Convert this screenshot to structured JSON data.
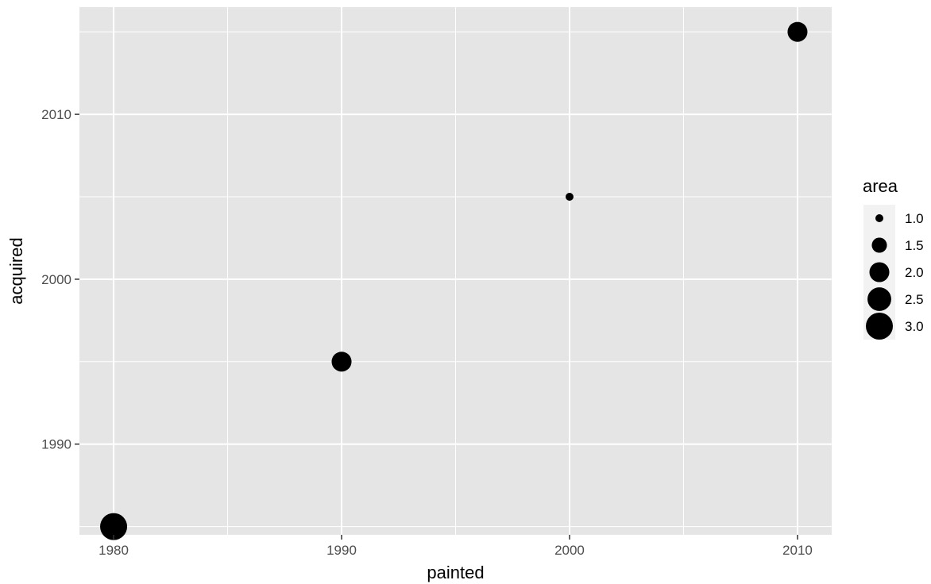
{
  "chart_data": {
    "type": "scatter",
    "title": "",
    "xlabel": "painted",
    "ylabel": "acquired",
    "xlim": [
      1978.5,
      2011.5
    ],
    "ylim": [
      1984.5,
      2016.5
    ],
    "x_ticks": [
      1980,
      1990,
      2000,
      2010
    ],
    "y_ticks": [
      1990,
      2000,
      2010
    ],
    "grid": true,
    "points": [
      {
        "painted": 1980,
        "acquired": 1985,
        "area": 3.0
      },
      {
        "painted": 1990,
        "acquired": 1995,
        "area": 2.0
      },
      {
        "painted": 2000,
        "acquired": 2005,
        "area": 1.0
      },
      {
        "painted": 2010,
        "acquired": 2015,
        "area": 2.0
      }
    ],
    "legend": {
      "title": "area",
      "position": "right",
      "entries": [
        {
          "label": "1.0",
          "value": 1.0
        },
        {
          "label": "1.5",
          "value": 1.5
        },
        {
          "label": "2.0",
          "value": 2.0
        },
        {
          "label": "2.5",
          "value": 2.5
        },
        {
          "label": "3.0",
          "value": 3.0
        }
      ]
    },
    "colors": {
      "panel": "#e5e5e5",
      "grid": "#ffffff",
      "point": "#000000",
      "legend_key": "#f2f2f2"
    }
  }
}
